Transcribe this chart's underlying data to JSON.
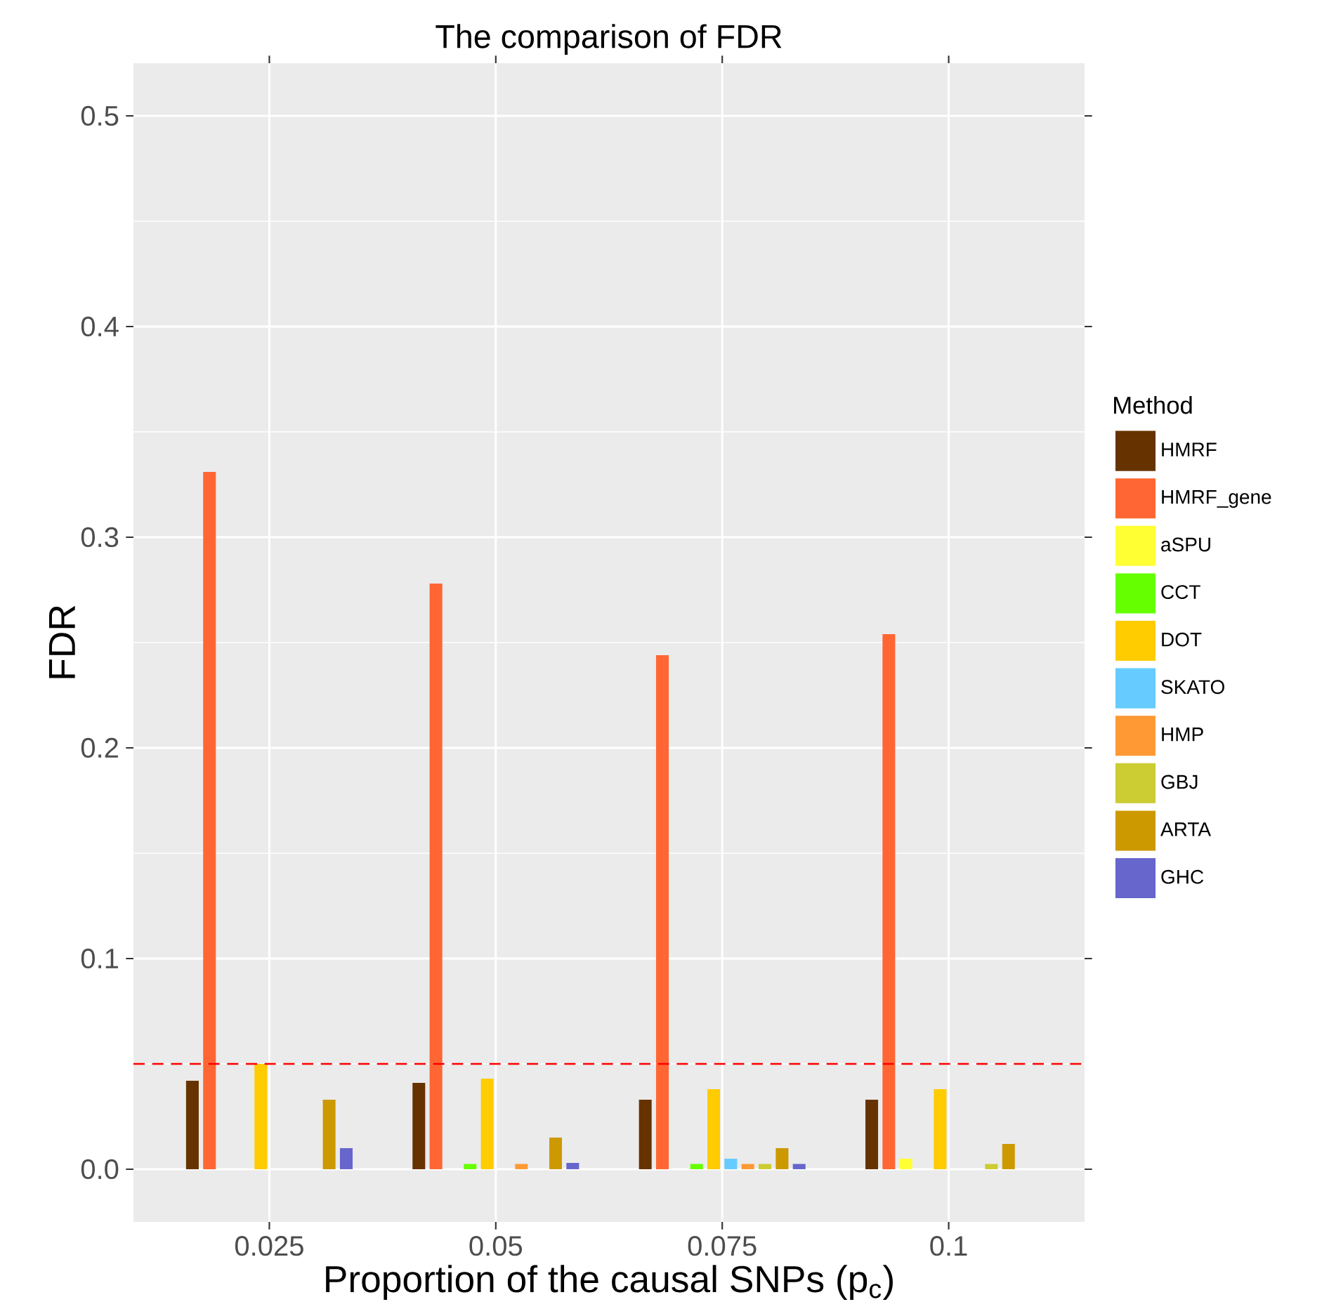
{
  "chart_data": {
    "type": "bar",
    "title": "The comparison of FDR",
    "xlabel": "Proportion of the causal SNPs (p$_{c}$)",
    "ylabel": "FDR",
    "legend_title": "Method",
    "categories": [
      "0.025",
      "0.05",
      "0.075",
      "0.1"
    ],
    "series": [
      {
        "name": "HMRF",
        "color": "#663300",
        "values": [
          0.042,
          0.041,
          0.033,
          0.033
        ]
      },
      {
        "name": "HMRF_gene",
        "color": "#ff6633",
        "values": [
          0.331,
          0.278,
          0.244,
          0.254
        ]
      },
      {
        "name": "aSPU",
        "color": "#ffff33",
        "values": [
          0,
          0,
          0,
          0.005
        ]
      },
      {
        "name": "CCT",
        "color": "#66ff00",
        "values": [
          0,
          0.0025,
          0.0025,
          0
        ]
      },
      {
        "name": "DOT",
        "color": "#ffcc00",
        "values": [
          0.05,
          0.043,
          0.038,
          0.038
        ]
      },
      {
        "name": "SKATO",
        "color": "#66ccff",
        "values": [
          0,
          0,
          0.005,
          0
        ]
      },
      {
        "name": "HMP",
        "color": "#ff9933",
        "values": [
          0,
          0.0025,
          0.0025,
          0
        ]
      },
      {
        "name": "GBJ",
        "color": "#cccc33",
        "values": [
          0,
          0,
          0.0025,
          0.0025
        ]
      },
      {
        "name": "ARTA",
        "color": "#cc9900",
        "values": [
          0.033,
          0.015,
          0.01,
          0.012
        ]
      },
      {
        "name": "GHC",
        "color": "#6666cc",
        "values": [
          0.01,
          0.003,
          0.0025,
          0
        ]
      }
    ],
    "ylim": [
      -0.025,
      0.525
    ],
    "yticks": [
      {
        "value": 0,
        "label": "0.0"
      },
      0.1,
      0.2,
      0.3,
      0.4,
      0.5
    ],
    "ref_lines": [
      {
        "axis": "y",
        "value": 0.05,
        "color": "#ff0000",
        "line_style": "dashed"
      }
    ],
    "grid": true,
    "legend": "right"
  }
}
